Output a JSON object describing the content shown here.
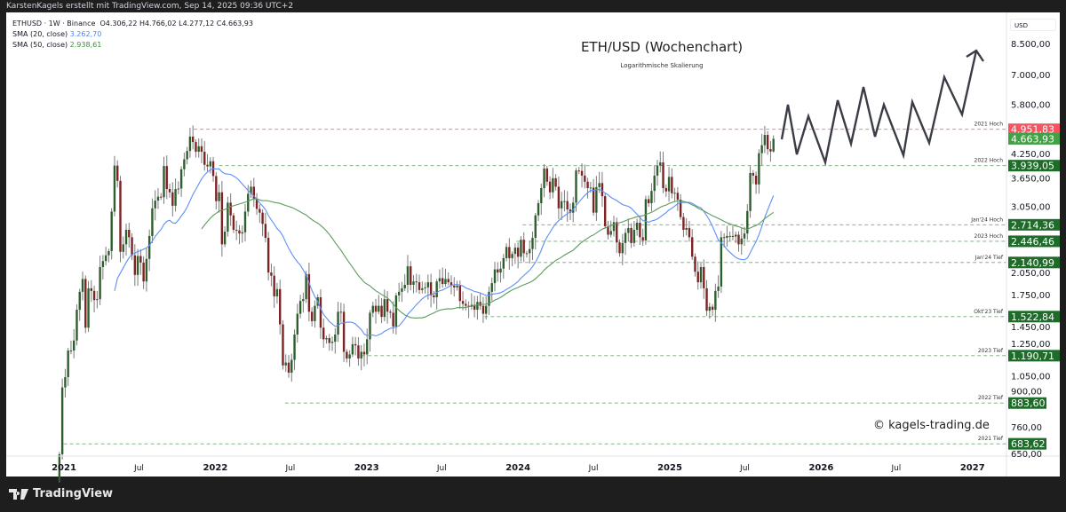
{
  "header": {
    "creator_line": "KarstenKagels erstellt mit TradingView.com, Sep 14, 2025 09:36 UTC+2"
  },
  "legend": {
    "symbol_line": "ETHUSD · 1W · Binance",
    "ohlc": "O4.306,22  H4.766,02  L4.277,12  C4.663,93",
    "sma20_label": "SMA (20, close)",
    "sma20_value": "3.262,70",
    "sma50_label": "SMA (50, close)",
    "sma50_value": "2.938,61"
  },
  "chart_title": "ETH/USD (Wochenchart)",
  "chart_subtitle": "Logarithmische Skalierung",
  "currency": "USD",
  "watermark": "© kagels-trading.de",
  "brand": "TradingView",
  "colors": {
    "up": "#2d5f2d",
    "down": "#7d2323",
    "wick": "#7a7a7a",
    "sma20": "#5b8ff9",
    "sma50": "#5e9a5e",
    "level_red": "#f7525f",
    "level_green": "#1e6b2a",
    "last_price": "#43a047"
  },
  "chart_data": {
    "type": "candlestick",
    "timeframe": "1W",
    "scale": "log",
    "ylim": [
      640,
      9500
    ],
    "yticks": [
      "8.500,00",
      "7.000,00",
      "5.800,00",
      "4.250,00",
      "3.650,00",
      "3.050,00",
      "2.050,00",
      "1.750,00",
      "1.450,00",
      "1.250,00",
      "1.050,00",
      "900,00",
      "760,00",
      "650,00"
    ],
    "ytick_values": [
      8500,
      7000,
      5800,
      4250,
      3650,
      3050,
      2050,
      1750,
      1450,
      1250,
      1050,
      900,
      760,
      650
    ],
    "xticks": [
      {
        "label": "2021",
        "date": "2021-01-01",
        "bold": true
      },
      {
        "label": "Jul",
        "date": "2021-07-01"
      },
      {
        "label": "2022",
        "date": "2022-01-01",
        "bold": true
      },
      {
        "label": "Jul",
        "date": "2022-07-01"
      },
      {
        "label": "2023",
        "date": "2023-01-01",
        "bold": true
      },
      {
        "label": "Jul",
        "date": "2023-07-01"
      },
      {
        "label": "2024",
        "date": "2024-01-01",
        "bold": true
      },
      {
        "label": "Jul",
        "date": "2024-07-01"
      },
      {
        "label": "2025",
        "date": "2025-01-01",
        "bold": true
      },
      {
        "label": "Jul",
        "date": "2025-07-01"
      },
      {
        "label": "2026",
        "date": "2026-01-01",
        "bold": true
      },
      {
        "label": "Jul",
        "date": "2026-07-01"
      },
      {
        "label": "2027",
        "date": "2027-01-01",
        "bold": true
      }
    ],
    "last_candle": {
      "open": 4306.22,
      "high": 4766.02,
      "low": 4277.12,
      "close": 4663.93
    },
    "weekly_closes": {
      "2020-12": [
        640,
        975
      ],
      "2021-01": [
        1040,
        1230,
        1230,
        1310
      ],
      "2021-02": [
        1590,
        1780,
        1930,
        1420
      ],
      "2021-03": [
        1820,
        1790,
        1690,
        1700,
        2080
      ],
      "2021-04": [
        2160,
        2240,
        2300,
        2950
      ],
      "2021-05": [
        3940,
        3580,
        2290,
        2400,
        2630
      ],
      "2021-06": [
        2510,
        2240,
        1980,
        2230
      ],
      "2021-07": [
        2140,
        1900,
        2190,
        2530
      ],
      "2021-08": [
        3010,
        3160,
        3240,
        3230,
        3930
      ],
      "2021-09": [
        3400,
        3330,
        3060,
        3400
      ],
      "2021-10": [
        3410,
        3850,
        4100,
        4320
      ],
      "2021-11": [
        4730,
        4570,
        4300,
        4450,
        4300
      ],
      "2021-12": [
        3960,
        3920,
        4050,
        3690
      ],
      "2022-01": [
        3150,
        3330,
        2400,
        2600,
        3120
      ],
      "2022-02": [
        2880,
        2630,
        2620,
        2570
      ],
      "2022-03": [
        2590,
        2950,
        3300,
        3450
      ],
      "2022-04": [
        3200,
        3000,
        2930,
        2730
      ],
      "2022-05": [
        2500,
        2010,
        1970,
        1730,
        1810
      ],
      "2022-06": [
        1450,
        1120,
        1140,
        1070
      ],
      "2022-07": [
        1160,
        1360,
        1550,
        1680
      ],
      "2022-08": [
        1700,
        1990,
        1570,
        1480,
        1630
      ],
      "2022-09": [
        1720,
        1420,
        1320,
        1330
      ],
      "2022-10": [
        1290,
        1300,
        1360,
        1570,
        1570
      ],
      "2022-11": [
        1220,
        1170,
        1200,
        1280
      ],
      "2022-12": [
        1270,
        1170,
        1220,
        1200
      ],
      "2023-01": [
        1320,
        1560,
        1630,
        1570,
        1630
      ],
      "2023-02": [
        1520,
        1700,
        1570,
        1560
      ],
      "2023-03": [
        1430,
        1740,
        1780,
        1820
      ],
      "2023-04": [
        1860,
        2090,
        1860,
        1900
      ],
      "2023-05": [
        1890,
        1800,
        1820,
        1830,
        1890
      ],
      "2023-06": [
        1740,
        1720,
        1900,
        1940
      ],
      "2023-07": [
        1870,
        1930,
        1890,
        1850,
        1830
      ],
      "2023-08": [
        1850,
        1680,
        1650,
        1630
      ],
      "2023-09": [
        1620,
        1640,
        1590,
        1670
      ],
      "2023-10": [
        1630,
        1550,
        1630,
        1780,
        1880
      ],
      "2023-11": [
        2050,
        2010,
        2060,
        2200
      ],
      "2023-12": [
        2360,
        2200,
        2260,
        2350
      ],
      "2024-01": [
        2220,
        2470,
        2270,
        2270,
        2330
      ],
      "2024-02": [
        2500,
        2880,
        3110,
        3420
      ],
      "2024-03": [
        3870,
        3560,
        3330,
        3640
      ],
      "2024-04": [
        3450,
        3010,
        3150,
        3150,
        2990
      ],
      "2024-05": [
        2930,
        3120,
        3820,
        3810
      ],
      "2024-06": [
        3700,
        3560,
        3420,
        3430
      ],
      "2024-07": [
        2930,
        3440,
        3530,
        3250,
        2690
      ],
      "2024-08": [
        2550,
        2610,
        2760,
        2430
      ],
      "2024-09": [
        2270,
        2420,
        2580,
        2660,
        2420
      ],
      "2024-10": [
        2630,
        2750,
        2510,
        2460
      ],
      "2024-11": [
        3190,
        3110,
        3360,
        3700
      ],
      "2024-12": [
        3940,
        4020,
        3420,
        3350,
        3670
      ],
      "2025-01": [
        3310,
        3320,
        3180,
        2850
      ],
      "2025-02": [
        2630,
        2660,
        2510,
        2220
      ],
      "2025-03": [
        2020,
        1890,
        2080,
        1820,
        1580
      ],
      "2025-04": [
        1620,
        1590,
        1790,
        1840
      ],
      "2025-05": [
        2510,
        2500,
        2530,
        2530
      ],
      "2025-06": [
        2520,
        2550,
        2400,
        2490,
        2570
      ],
      "2025-07": [
        2960,
        3760,
        3700,
        3500
      ],
      "2025-08": [
        4260,
        4480,
        4780,
        4370
      ],
      "2025-09": [
        4306.22,
        4663.93
      ]
    },
    "indicators": [
      {
        "name": "SMA (20, close)",
        "period": 20,
        "color": "#5b8ff9"
      },
      {
        "name": "SMA (50, close)",
        "period": 50,
        "color": "#5e9a5e"
      }
    ],
    "levels": [
      {
        "label": "2021 Hoch",
        "value": 4951.83,
        "value_text": "4.951,83",
        "color": "#f7525f",
        "since": "2021-11-10"
      },
      {
        "label": "",
        "value": 4663.93,
        "value_text": "4.663,93",
        "color": "#43a047",
        "last_price": true
      },
      {
        "label": "2022 Hoch",
        "value": 3939.05,
        "value_text": "3.939,05",
        "color": "#1e6b2a",
        "since": "2022-01-10"
      },
      {
        "label": "Jan'24 Hoch",
        "value": 2714.36,
        "value_text": "2.714,36",
        "color": "#1e6b2a",
        "since": "2024-01-12"
      },
      {
        "label": "2023 Hoch",
        "value": 2446.46,
        "value_text": "2.446,46",
        "color": "#1e6b2a",
        "since": "2023-12-28"
      },
      {
        "label": "Jan'24 Tief",
        "value": 2140.99,
        "value_text": "2.140,99",
        "color": "#1e6b2a",
        "since": "2024-01-03"
      },
      {
        "label": "Okt'23 Tief",
        "value": 1522.84,
        "value_text": "1.522,84",
        "color": "#1e6b2a",
        "since": "2023-10-12"
      },
      {
        "label": "2023 Tief",
        "value": 1190.71,
        "value_text": "1.190,71",
        "color": "#1e6b2a",
        "since": "2022-12-20"
      },
      {
        "label": "2022 Tief",
        "value": 883.6,
        "value_text": "883,60",
        "color": "#1e6b2a",
        "since": "2022-06-18"
      },
      {
        "label": "2021 Tief",
        "value": 683.62,
        "value_text": "683,62",
        "color": "#1e6b2a",
        "since": "2020-12-31"
      }
    ],
    "annotation": "zigzag projection arrow pointing upward"
  }
}
